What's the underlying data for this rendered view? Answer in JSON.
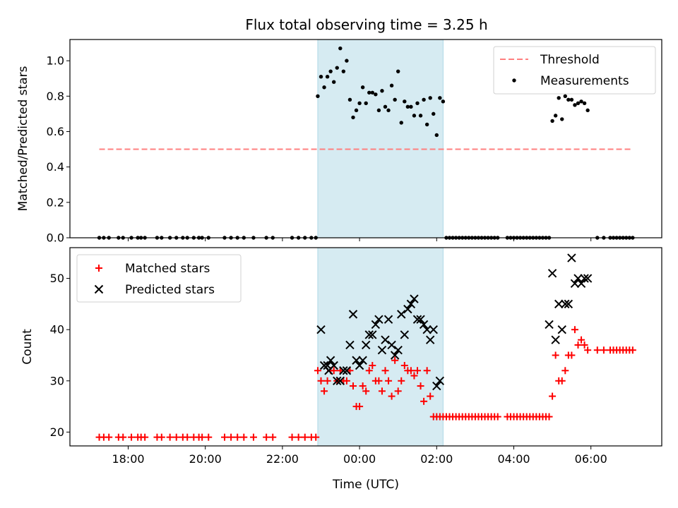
{
  "chart_data": {
    "title": "Flux total observing time = 3.25 h",
    "x_axis": {
      "label": "Time (UTC)",
      "ticks": [
        "18:00",
        "20:00",
        "22:00",
        "00:00",
        "02:00",
        "04:00",
        "06:00"
      ]
    },
    "highlight_span": {
      "start": "22:55",
      "end": "02:10",
      "color": "#add8e6"
    },
    "panels": [
      {
        "type": "scatter",
        "ylabel": "Matched/Predicted stars",
        "ylim": [
          0,
          1.12
        ],
        "yticks": [
          "0.0",
          "0.2",
          "0.4",
          "0.6",
          "0.8",
          "1.0"
        ],
        "legend_position": "top-right",
        "threshold": {
          "name": "Threshold",
          "value": 0.5,
          "x_start": "17:15",
          "x_end": "07:05",
          "color": "#ff7f7f"
        },
        "series": [
          {
            "name": "Measurements",
            "marker": "dot",
            "color": "#000000",
            "x": [
              "17:15",
              "17:22",
              "17:30",
              "17:45",
              "17:52",
              "18:05",
              "18:15",
              "18:20",
              "18:26",
              "18:45",
              "18:52",
              "19:05",
              "19:15",
              "19:25",
              "19:32",
              "19:42",
              "19:50",
              "19:55",
              "20:05",
              "20:30",
              "20:40",
              "20:50",
              "21:00",
              "21:15",
              "21:35",
              "21:45",
              "22:15",
              "22:25",
              "22:35",
              "22:45",
              "22:52",
              "22:55",
              "23:00",
              "23:05",
              "23:10",
              "23:15",
              "23:20",
              "23:25",
              "23:30",
              "23:35",
              "23:40",
              "23:45",
              "23:50",
              "23:55",
              "00:00",
              "00:05",
              "00:10",
              "00:15",
              "00:20",
              "00:25",
              "00:30",
              "00:35",
              "00:40",
              "00:45",
              "00:50",
              "00:55",
              "01:00",
              "01:05",
              "01:10",
              "01:15",
              "01:20",
              "01:25",
              "01:30",
              "01:35",
              "01:40",
              "01:45",
              "01:50",
              "01:55",
              "02:00",
              "02:05",
              "02:10",
              "02:15",
              "02:20",
              "02:25",
              "02:30",
              "02:35",
              "02:40",
              "02:45",
              "02:50",
              "02:55",
              "03:00",
              "03:05",
              "03:10",
              "03:15",
              "03:20",
              "03:25",
              "03:30",
              "03:35",
              "03:50",
              "03:55",
              "04:00",
              "04:05",
              "04:10",
              "04:15",
              "04:20",
              "04:25",
              "04:30",
              "04:35",
              "04:40",
              "04:45",
              "04:50",
              "04:55",
              "05:00",
              "05:05",
              "05:10",
              "05:15",
              "05:20",
              "05:25",
              "05:30",
              "05:35",
              "05:40",
              "05:45",
              "05:50",
              "05:55",
              "06:10",
              "06:20",
              "06:30",
              "06:35",
              "06:40",
              "06:45",
              "06:50",
              "06:55",
              "07:00",
              "07:05"
            ],
            "y": [
              0,
              0,
              0,
              0,
              0,
              0,
              0,
              0,
              0,
              0,
              0,
              0,
              0,
              0,
              0,
              0,
              0,
              0,
              0,
              0,
              0,
              0,
              0,
              0,
              0,
              0,
              0,
              0,
              0,
              0,
              0,
              0.8,
              0.91,
              0.85,
              0.91,
              0.94,
              0.88,
              0.96,
              1.07,
              0.94,
              1.0,
              0.78,
              0.68,
              0.72,
              0.76,
              0.85,
              0.76,
              0.82,
              0.82,
              0.81,
              0.72,
              0.83,
              0.74,
              0.72,
              0.86,
              0.78,
              0.94,
              0.65,
              0.77,
              0.74,
              0.74,
              0.69,
              0.76,
              0.69,
              0.78,
              0.64,
              0.79,
              0.7,
              0.58,
              0.79,
              0.77,
              0,
              0,
              0,
              0,
              0,
              0,
              0,
              0,
              0,
              0,
              0,
              0,
              0,
              0,
              0,
              0,
              0,
              0,
              0,
              0,
              0,
              0,
              0,
              0,
              0,
              0,
              0,
              0,
              0,
              0,
              0,
              0.66,
              0.69,
              0.79,
              0.67,
              0.8,
              0.78,
              0.78,
              0.75,
              0.76,
              0.77,
              0.76,
              0.72,
              0,
              0,
              0,
              0,
              0,
              0,
              0,
              0,
              0,
              0
            ]
          }
        ]
      },
      {
        "type": "scatter",
        "ylabel": "Count",
        "ylim": [
          17.3,
          56
        ],
        "yticks": [
          "20",
          "30",
          "40",
          "50"
        ],
        "legend_position": "top-left",
        "series": [
          {
            "name": "Matched stars",
            "marker": "plus",
            "color": "#ff0000",
            "x": [
              "17:15",
              "17:22",
              "17:30",
              "17:45",
              "17:52",
              "18:05",
              "18:15",
              "18:20",
              "18:26",
              "18:45",
              "18:52",
              "19:05",
              "19:15",
              "19:25",
              "19:32",
              "19:42",
              "19:50",
              "19:55",
              "20:05",
              "20:30",
              "20:40",
              "20:50",
              "21:00",
              "21:15",
              "21:35",
              "21:45",
              "22:15",
              "22:25",
              "22:35",
              "22:45",
              "22:52",
              "22:55",
              "23:00",
              "23:05",
              "23:10",
              "23:15",
              "23:20",
              "23:25",
              "23:30",
              "23:35",
              "23:40",
              "23:45",
              "23:50",
              "23:55",
              "00:00",
              "00:05",
              "00:10",
              "00:15",
              "00:20",
              "00:25",
              "00:30",
              "00:35",
              "00:40",
              "00:45",
              "00:50",
              "00:55",
              "01:00",
              "01:05",
              "01:10",
              "01:15",
              "01:20",
              "01:25",
              "01:30",
              "01:35",
              "01:40",
              "01:45",
              "01:50",
              "01:55",
              "02:00",
              "02:05",
              "02:10",
              "02:15",
              "02:20",
              "02:25",
              "02:30",
              "02:35",
              "02:40",
              "02:45",
              "02:50",
              "02:55",
              "03:00",
              "03:05",
              "03:10",
              "03:15",
              "03:20",
              "03:25",
              "03:30",
              "03:35",
              "03:50",
              "03:55",
              "04:00",
              "04:05",
              "04:10",
              "04:15",
              "04:20",
              "04:25",
              "04:30",
              "04:35",
              "04:40",
              "04:45",
              "04:50",
              "04:55",
              "05:00",
              "05:05",
              "05:10",
              "05:15",
              "05:20",
              "05:25",
              "05:30",
              "05:35",
              "05:40",
              "05:45",
              "05:50",
              "05:55",
              "06:10",
              "06:20",
              "06:30",
              "06:35",
              "06:40",
              "06:45",
              "06:50",
              "06:55",
              "07:00",
              "07:05"
            ],
            "y": [
              19,
              19,
              19,
              19,
              19,
              19,
              19,
              19,
              19,
              19,
              19,
              19,
              19,
              19,
              19,
              19,
              19,
              19,
              19,
              19,
              19,
              19,
              19,
              19,
              19,
              19,
              19,
              19,
              19,
              19,
              19,
              32,
              30,
              28,
              30,
              32,
              32,
              30,
              32,
              30,
              30,
              32,
              29,
              25,
              25,
              29,
              28,
              32,
              33,
              30,
              30,
              28,
              32,
              30,
              27,
              34,
              28,
              30,
              33,
              32,
              32,
              31,
              32,
              29,
              26,
              32,
              27,
              23,
              23,
              23,
              23,
              23,
              23,
              23,
              23,
              23,
              23,
              23,
              23,
              23,
              23,
              23,
              23,
              23,
              23,
              23,
              23,
              23,
              23,
              23,
              23,
              23,
              23,
              23,
              23,
              23,
              23,
              23,
              23,
              23,
              23,
              23,
              27,
              35,
              30,
              30,
              32,
              35,
              35,
              40,
              37,
              38,
              37,
              36,
              36,
              36,
              36,
              36,
              36,
              36,
              36,
              36,
              36,
              36
            ]
          },
          {
            "name": "Predicted stars",
            "marker": "x",
            "color": "#000000",
            "x": [
              "23:00",
              "23:05",
              "23:10",
              "23:12",
              "23:15",
              "23:20",
              "23:25",
              "23:30",
              "23:35",
              "23:40",
              "23:45",
              "23:50",
              "23:55",
              "00:00",
              "00:05",
              "00:10",
              "00:15",
              "00:20",
              "00:25",
              "00:30",
              "00:35",
              "00:40",
              "00:45",
              "00:50",
              "00:55",
              "01:00",
              "01:05",
              "01:10",
              "01:15",
              "01:20",
              "01:25",
              "01:30",
              "01:35",
              "01:40",
              "01:45",
              "01:50",
              "01:55",
              "02:00",
              "02:05",
              "04:55",
              "05:00",
              "05:05",
              "05:10",
              "05:15",
              "05:20",
              "05:25",
              "05:30",
              "05:35",
              "05:40",
              "05:45",
              "05:50",
              "05:55"
            ],
            "y": [
              40,
              33,
              33,
              32,
              34,
              33,
              30,
              30,
              32,
              32,
              37,
              43,
              34,
              33,
              34,
              37,
              39,
              39,
              41,
              42,
              36,
              38,
              42,
              37,
              35,
              36,
              43,
              39,
              44,
              45,
              46,
              42,
              42,
              41,
              40,
              38,
              40,
              29,
              30,
              41,
              51,
              38,
              45,
              40,
              45,
              45,
              54,
              49,
              50,
              49,
              50,
              50
            ]
          }
        ]
      }
    ]
  }
}
